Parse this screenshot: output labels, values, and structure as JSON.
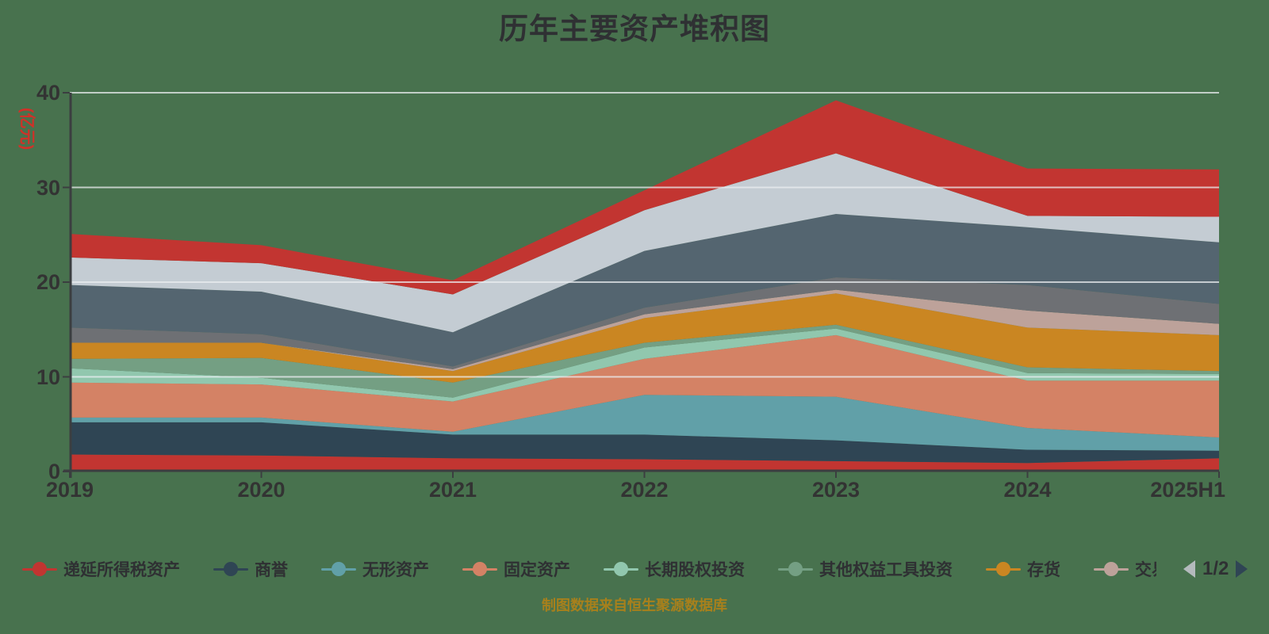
{
  "title": "历年主要资产堆积图",
  "footer_note": "制图数据来自恒生聚源数据库",
  "y_axis": {
    "unit_label": "(亿元)",
    "tick_labels": [
      "0",
      "10",
      "20",
      "30",
      "40"
    ],
    "min": 0,
    "max": 40,
    "interval": 10
  },
  "x_axis": {
    "tick_labels": [
      "2019",
      "2020",
      "2021",
      "2022",
      "2023",
      "2024",
      "2025H1"
    ]
  },
  "chart_data": {
    "type": "area",
    "stacked": true,
    "title": "历年主要资产堆积图",
    "categories": [
      "2019",
      "2020",
      "2021",
      "2022",
      "2023",
      "2024",
      "2025H1"
    ],
    "ylabel": "(亿元)",
    "ylim": [
      0,
      40
    ],
    "grid": true,
    "legend_position": "bottom",
    "series": [
      {
        "name": "递延所得税资产",
        "color": "#c23531",
        "values": [
          1.8,
          1.7,
          1.4,
          1.3,
          1.1,
          0.9,
          1.4
        ]
      },
      {
        "name": "商誉",
        "color": "#2f4554",
        "values": [
          3.4,
          3.5,
          2.5,
          2.6,
          2.2,
          1.4,
          0.8
        ]
      },
      {
        "name": "无形资产",
        "color": "#61a0a8",
        "values": [
          0.5,
          0.5,
          0.3,
          4.2,
          4.6,
          2.3,
          1.4
        ]
      },
      {
        "name": "固定资产",
        "color": "#d48265",
        "values": [
          3.7,
          3.5,
          3.2,
          3.8,
          6.5,
          5.0,
          6.0
        ]
      },
      {
        "name": "长期股权投资",
        "color": "#91c7ae",
        "values": [
          1.5,
          0.7,
          0.4,
          1.2,
          0.7,
          0.8,
          0.7
        ]
      },
      {
        "name": "其他权益工具投资",
        "color": "#749f83",
        "values": [
          1.0,
          2.1,
          1.6,
          0.5,
          0.4,
          0.6,
          0.3
        ]
      },
      {
        "name": "存货",
        "color": "#ca8622",
        "values": [
          1.7,
          1.6,
          1.2,
          2.6,
          3.3,
          4.2,
          3.8
        ]
      },
      {
        "name": "交易性",
        "color": "#bda29a",
        "values": [
          0.0,
          0.0,
          0.2,
          0.4,
          0.4,
          1.8,
          1.2
        ]
      },
      {
        "name": "",
        "color": "#6e7074",
        "values": [
          1.6,
          0.9,
          0.3,
          0.7,
          1.3,
          2.7,
          2.1
        ]
      },
      {
        "name": "",
        "color": "#546570",
        "values": [
          4.5,
          4.5,
          3.6,
          6.0,
          6.7,
          6.1,
          6.5
        ]
      },
      {
        "name": "",
        "color": "#c4ccd3",
        "values": [
          2.9,
          3.0,
          4.0,
          4.3,
          6.4,
          1.2,
          2.7
        ]
      },
      {
        "name": "",
        "color": "#c23531",
        "values": [
          2.5,
          1.9,
          1.5,
          2.1,
          5.6,
          5.0,
          5.0
        ]
      }
    ]
  },
  "legend": {
    "items": [
      {
        "label": "递延所得税资产",
        "color": "#c23531"
      },
      {
        "label": "商誉",
        "color": "#2f4554"
      },
      {
        "label": "无形资产",
        "color": "#61a0a8"
      },
      {
        "label": "固定资产",
        "color": "#d48265"
      },
      {
        "label": "长期股权投资",
        "color": "#91c7ae"
      },
      {
        "label": "其他权益工具投资",
        "color": "#749f83"
      },
      {
        "label": "存货",
        "color": "#ca8622"
      },
      {
        "label": "交易性",
        "color": "#bda29a"
      }
    ],
    "pager": {
      "label": "1/2"
    }
  },
  "colors": {
    "background": "#48724e",
    "axis_text": "#333333",
    "axis_line": "#3b3e40",
    "grid_line_overlay": "rgba(235,238,240,0.75)",
    "unit_label": "#d03128",
    "footer_text": "#a8801c",
    "pager_prev": "#b4babd",
    "pager_next": "#2f4554"
  }
}
